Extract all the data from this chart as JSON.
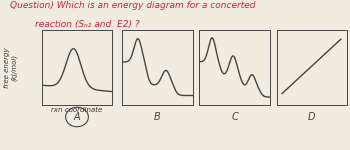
{
  "background_color": "#f0ece0",
  "line_color": "#444444",
  "title_color": "#cc2244",
  "title_fontsize": 6.5,
  "label_fontsize": 5.0,
  "diagram_label_fontsize": 7.0,
  "diagrams": [
    "A",
    "B",
    "C",
    "D"
  ],
  "answer": "A",
  "ylabel": "free energy\n(kJ/mol)",
  "xlabel": "rxn coordinate"
}
